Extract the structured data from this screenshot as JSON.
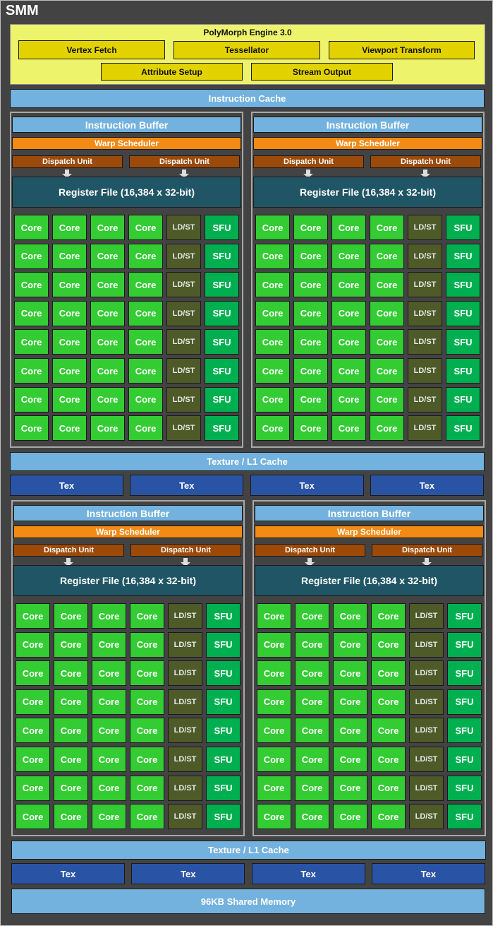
{
  "title": "SMM",
  "polymorph": {
    "title": "PolyMorph Engine 3.0",
    "units": [
      "Vertex Fetch",
      "Tessellator",
      "Viewport Transform",
      "Attribute Setup",
      "Stream Output"
    ]
  },
  "instruction_cache": "Instruction Cache",
  "partition": {
    "instruction_buffer": "Instruction Buffer",
    "warp_scheduler": "Warp Scheduler",
    "dispatch_unit": "Dispatch Unit",
    "register_file": "Register File (16,384 x 32-bit)",
    "row": [
      "Core",
      "Core",
      "Core",
      "Core",
      "LD/ST",
      "SFU"
    ],
    "rows": 8
  },
  "texture_l1": "Texture / L1 Cache",
  "tex": "Tex",
  "shared_memory": "96KB Shared Memory",
  "colors": {
    "core": "#33cc33",
    "ldst": "#4e5a28",
    "sfu": "#00b050",
    "instruction_buffer": "#73b2de",
    "warp_scheduler": "#f28a14",
    "dispatch_unit": "#9c4a0a",
    "register_file": "#1f5565",
    "tex": "#2953a5",
    "polymorph": "#eef36c"
  }
}
